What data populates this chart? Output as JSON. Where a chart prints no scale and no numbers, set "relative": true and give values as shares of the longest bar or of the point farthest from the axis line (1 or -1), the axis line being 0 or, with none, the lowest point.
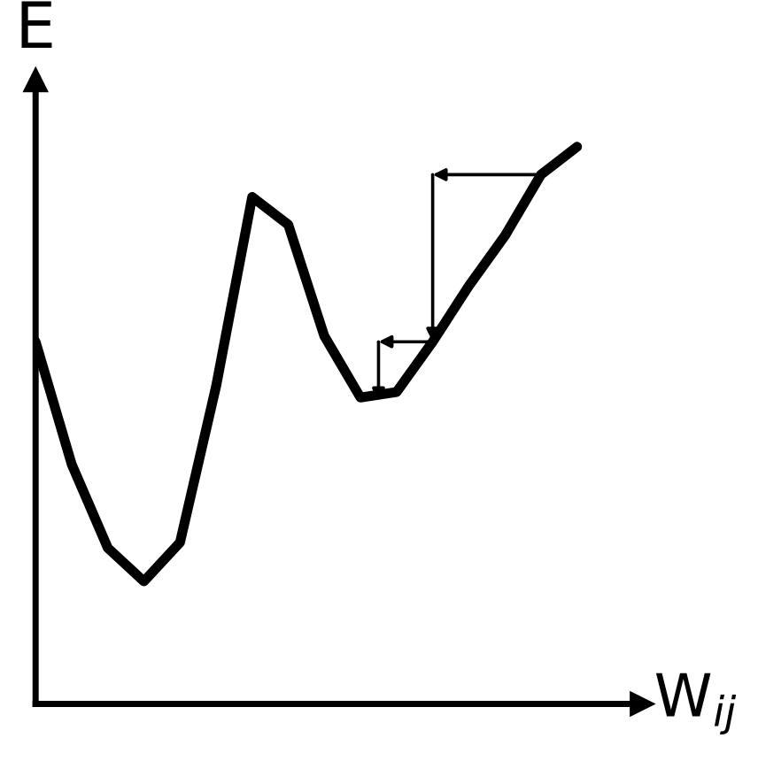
{
  "chart_data": {
    "type": "line",
    "relative": true,
    "xlabel": "W$_{ij}$",
    "ylabel": "E",
    "categories": [
      null,
      null,
      null,
      null,
      null,
      null,
      null,
      null,
      null,
      null,
      null,
      null,
      null,
      null,
      null,
      null
    ],
    "series": [
      {
        "color": "#000000",
        "values": [
          0.65,
          0.43,
          0.28,
          0.22,
          0.29,
          0.57,
          0.91,
          0.86,
          0.66,
          0.55,
          0.56,
          0.65,
          0.75,
          0.84,
          0.95,
          1.0
        ]
      }
    ],
    "marker": "none",
    "line_style": "solid",
    "legend": false
  }
}
